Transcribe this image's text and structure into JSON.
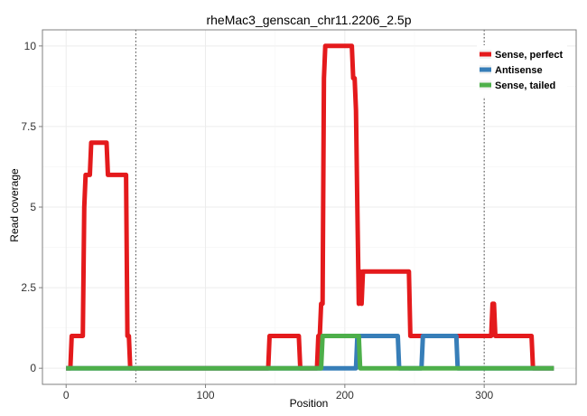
{
  "chart_data": {
    "type": "line",
    "title": "rheMac3_genscan_chr11.2206_2.5p",
    "xlabel": "Position",
    "ylabel": "Read coverage",
    "xlim": [
      -17,
      366
    ],
    "ylim": [
      -0.5,
      10.5
    ],
    "xticks": [
      0,
      100,
      200,
      300
    ],
    "yticks": [
      0,
      2.5,
      5,
      7.5,
      10
    ],
    "xtick_labels": [
      "0",
      "100",
      "200",
      "300"
    ],
    "ytick_labels": [
      "0",
      "2.5",
      "5",
      "7.5",
      "10"
    ],
    "grid": true,
    "legend_position": "top-right",
    "vlines": [
      50,
      300
    ],
    "series": [
      {
        "name": "Sense, perfect",
        "color": "#e41a1c",
        "x": [
          0,
          3,
          4,
          12,
          13,
          14,
          15,
          17,
          18,
          20,
          26,
          29,
          30,
          42,
          43,
          44,
          45,
          46,
          145,
          146,
          147,
          167,
          168,
          180,
          181,
          182,
          183,
          184,
          185,
          186,
          187,
          188,
          205,
          206,
          207,
          208,
          209,
          210,
          211,
          212,
          213,
          214,
          215,
          216,
          246,
          247,
          248,
          300,
          305,
          306,
          307,
          308,
          334,
          335,
          336,
          350
        ],
        "y": [
          0,
          0,
          1,
          1,
          5,
          6,
          6,
          6,
          7,
          7,
          7,
          7,
          6,
          6,
          6,
          1,
          1,
          0,
          0,
          1,
          1,
          1,
          0,
          0,
          1,
          1,
          2,
          2,
          9,
          10,
          10,
          10,
          10,
          9,
          9,
          8,
          5,
          2,
          3,
          2,
          3,
          3,
          3,
          3,
          3,
          1,
          1,
          1,
          1,
          2,
          2,
          1,
          1,
          0,
          0,
          0
        ]
      },
      {
        "name": "Antisense",
        "color": "#377eb8",
        "x": [
          0,
          172,
          173,
          180,
          181,
          208,
          209,
          238,
          239,
          255,
          256,
          280,
          281,
          350
        ],
        "y": [
          0,
          0,
          0,
          0,
          0,
          0,
          1,
          1,
          0,
          0,
          1,
          1,
          0,
          0
        ]
      },
      {
        "name": "Sense, tailed",
        "color": "#4daf4a",
        "x": [
          0,
          182,
          183,
          184,
          185,
          210,
          211,
          350
        ],
        "y": [
          0,
          0,
          0,
          1,
          1,
          1,
          0,
          0
        ]
      }
    ]
  }
}
